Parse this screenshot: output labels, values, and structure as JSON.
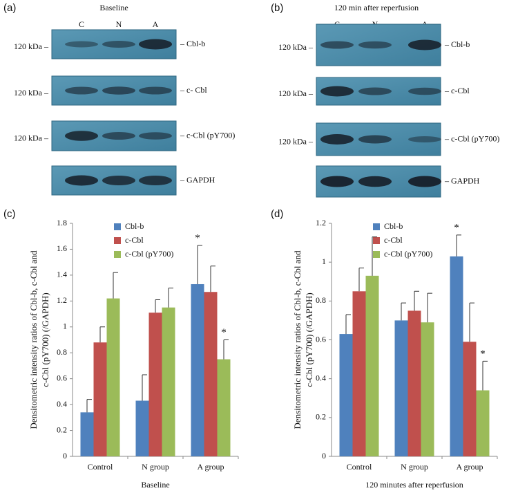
{
  "blots": [
    {
      "panel": "(a)",
      "title": "Baseline",
      "lanes": [
        "C",
        "N",
        "A"
      ],
      "rows": [
        {
          "left": "120 kDa –",
          "right": "– Cbl-b"
        },
        {
          "left": "120 kDa –",
          "right": "– c- Cbl"
        },
        {
          "left": "120 kDa –",
          "right": "– c-Cbl (pY700)"
        },
        {
          "right": "– GAPDH"
        }
      ]
    },
    {
      "panel": "(b)",
      "title": "120 min after reperfusion",
      "lanes": [
        "C",
        "N",
        "A"
      ],
      "rows": [
        {
          "left": "120 kDa –",
          "right": "– Cbl-b"
        },
        {
          "left": "120 kDa –",
          "right": "– c-Cbl"
        },
        {
          "left": "120 kDa –",
          "right": "– c-Cbl (pY700)"
        },
        {
          "right": "– GAPDH"
        }
      ]
    }
  ],
  "chart_data": [
    {
      "type": "bar",
      "panel": "(c)",
      "x_label": "Baseline",
      "y_label": [
        "Densitometric intensity ratios of Cbl-b, c-Cbl and",
        "c-Cbl (pY700) (/GAPDH)"
      ],
      "categories": [
        "Control",
        "N group",
        "A group"
      ],
      "ylim": [
        0,
        1.8
      ],
      "yticks": [
        0,
        0.2,
        0.4,
        0.6,
        0.8,
        1,
        1.2,
        1.4,
        1.6,
        1.8
      ],
      "series": [
        {
          "name": "Cbl-b",
          "color": "#4f81bd",
          "values": [
            0.34,
            0.43,
            1.33
          ],
          "errors": [
            0.1,
            0.2,
            0.3
          ],
          "annotations": [
            null,
            null,
            "*"
          ]
        },
        {
          "name": "c-Cbl",
          "color": "#c0504d",
          "values": [
            0.88,
            1.11,
            1.27
          ],
          "errors": [
            0.12,
            0.1,
            0.2
          ],
          "annotations": [
            null,
            null,
            null
          ]
        },
        {
          "name": "c-Cbl (pY700)",
          "color": "#9bbb59",
          "values": [
            1.22,
            1.15,
            0.75
          ],
          "errors": [
            0.2,
            0.15,
            0.15
          ],
          "annotations": [
            null,
            null,
            "*"
          ]
        }
      ]
    },
    {
      "type": "bar",
      "panel": "(d)",
      "x_label": "120 minutes after reperfusion",
      "y_label": [
        "Densitometric intensity ratios of Cbl-b, c-Cbl and",
        "c-Cbl (pY700) (/GAPDH)"
      ],
      "categories": [
        "Control",
        "N group",
        "A group"
      ],
      "ylim": [
        0,
        1.2
      ],
      "yticks": [
        0,
        0.2,
        0.4,
        0.6,
        0.8,
        1,
        1.2
      ],
      "series": [
        {
          "name": "Cbl-b",
          "color": "#4f81bd",
          "values": [
            0.63,
            0.7,
            1.03
          ],
          "errors": [
            0.1,
            0.09,
            0.11
          ],
          "annotations": [
            null,
            null,
            "*"
          ]
        },
        {
          "name": "c-Cbl",
          "color": "#c0504d",
          "values": [
            0.85,
            0.75,
            0.59
          ],
          "errors": [
            0.12,
            0.1,
            0.2
          ],
          "annotations": [
            null,
            null,
            null
          ]
        },
        {
          "name": "c-Cbl (pY700)",
          "color": "#9bbb59",
          "values": [
            0.93,
            0.69,
            0.34
          ],
          "errors": [
            0.2,
            0.15,
            0.15
          ],
          "annotations": [
            null,
            null,
            "*"
          ]
        }
      ]
    }
  ]
}
